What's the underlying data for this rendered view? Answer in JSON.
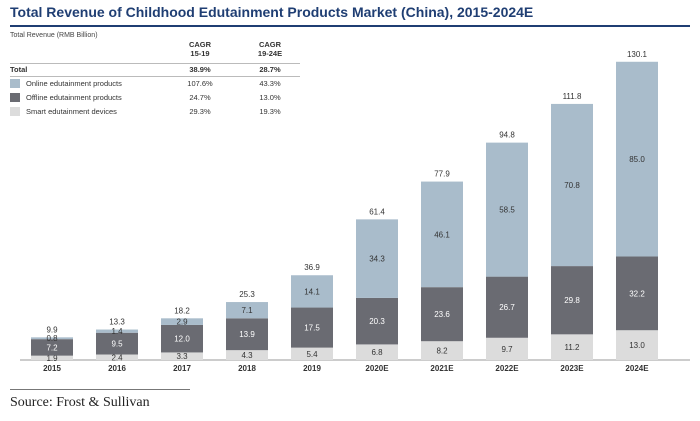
{
  "header": {
    "title": "Total Revenue of Childhood Edutainment Products Market (China), 2015-2024E",
    "unit_label": "Total Revenue (RMB Billion)"
  },
  "legend": {
    "cagr1_label": "CAGR\n15-19",
    "cagr2_label": "CAGR\n19-24E",
    "rows": [
      {
        "label": "Total",
        "cagr1": "38.9%",
        "cagr2": "28.7%"
      },
      {
        "label": "Online edutainment products",
        "cagr1": "107.6%",
        "cagr2": "43.3%",
        "color": "#a9bccb"
      },
      {
        "label": "Offline edutainment products",
        "cagr1": "24.7%",
        "cagr2": "13.0%",
        "color": "#6a6b72"
      },
      {
        "label": "Smart edutainment devices",
        "cagr1": "29.3%",
        "cagr2": "19.3%",
        "color": "#dcdcdc"
      }
    ]
  },
  "chart_data": {
    "type": "bar",
    "stacked": true,
    "categories": [
      "2015",
      "2016",
      "2017",
      "2018",
      "2019",
      "2020E",
      "2021E",
      "2022E",
      "2023E",
      "2024E"
    ],
    "series": [
      {
        "name": "Smart edutainment devices",
        "color": "#dcdcdc",
        "values": [
          1.9,
          2.4,
          3.3,
          4.3,
          5.4,
          6.8,
          8.2,
          9.7,
          11.2,
          13.0
        ]
      },
      {
        "name": "Offline edutainment products",
        "color": "#6a6b72",
        "values": [
          7.2,
          9.5,
          12.0,
          13.9,
          17.5,
          20.3,
          23.6,
          26.7,
          29.8,
          32.2
        ]
      },
      {
        "name": "Online edutainment products",
        "color": "#a9bccb",
        "values": [
          0.8,
          1.4,
          2.9,
          7.1,
          14.1,
          34.3,
          46.1,
          58.5,
          70.8,
          85.0
        ]
      }
    ],
    "totals": [
      9.9,
      13.3,
      18.2,
      25.3,
      36.9,
      61.4,
      77.9,
      94.8,
      111.8,
      130.1
    ],
    "ylabel": "Total Revenue (RMB Billion)",
    "ylim": [
      0,
      130.1
    ],
    "grid": false
  },
  "footer": {
    "source": "Source: Frost & Sullivan"
  }
}
